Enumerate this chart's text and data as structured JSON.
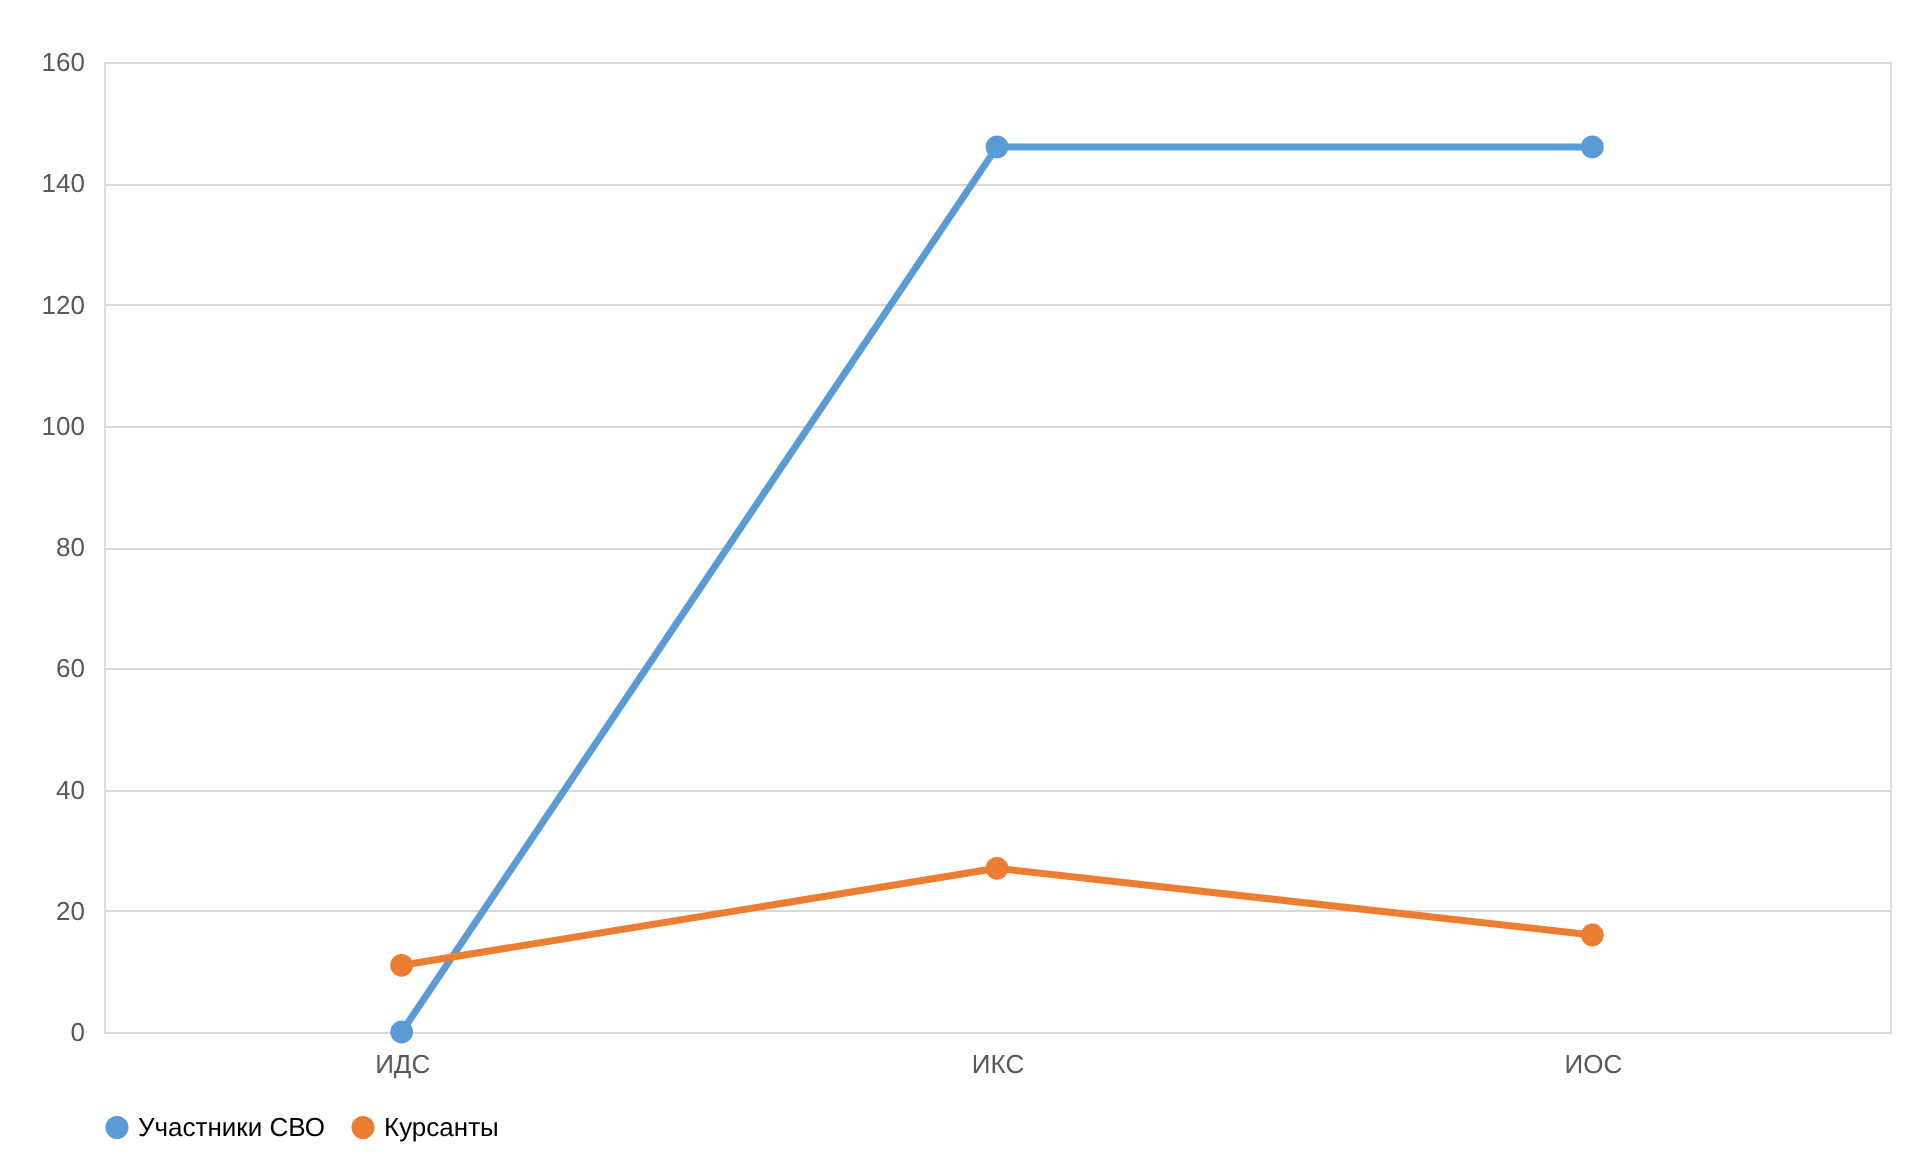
{
  "chart_data": {
    "type": "line",
    "categories": [
      "ИДС",
      "ИКС",
      "ИОС"
    ],
    "series": [
      {
        "name": "Участники СВО",
        "color": "#5b9bd5",
        "values": [
          0,
          146,
          146
        ]
      },
      {
        "name": "Курсанты",
        "color": "#ed7d31",
        "values": [
          11,
          27,
          16
        ]
      }
    ],
    "ylim": [
      0,
      160
    ],
    "yticks": [
      0,
      20,
      40,
      60,
      80,
      100,
      120,
      140,
      160
    ],
    "grid": "y",
    "legend": "bottom",
    "marker": "circle",
    "line_style": "solid"
  }
}
